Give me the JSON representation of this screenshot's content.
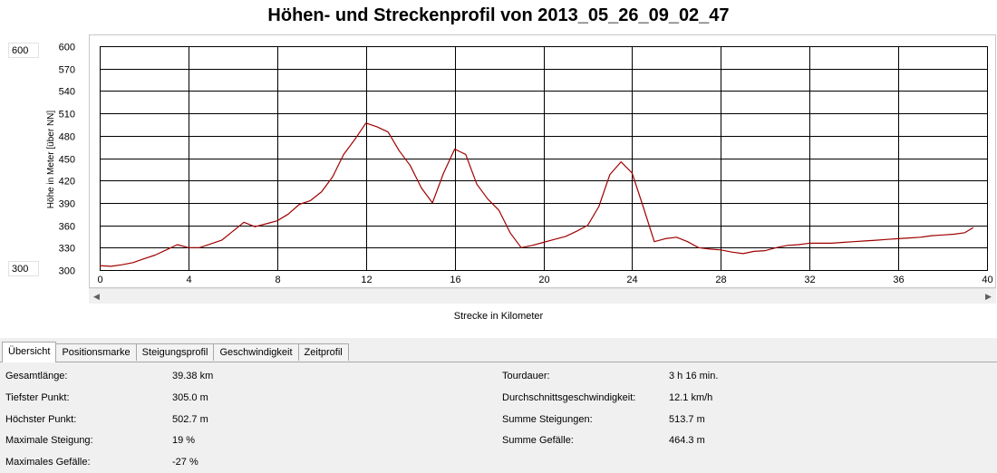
{
  "title": "Höhen- und Streckenprofil von 2013_05_26_09_02_47",
  "y_spin": {
    "max": "600",
    "min": "300"
  },
  "tabs": [
    {
      "label": "Übersicht",
      "active": true
    },
    {
      "label": "Positionsmarke",
      "active": false
    },
    {
      "label": "Steigungsprofil",
      "active": false
    },
    {
      "label": "Geschwindigkeit",
      "active": false
    },
    {
      "label": "Zeitprofil",
      "active": false
    }
  ],
  "stats_left": [
    {
      "label": "Gesamtlänge:",
      "value": "39.38 km"
    },
    {
      "label": "Tiefster Punkt:",
      "value": "305.0 m"
    },
    {
      "label": "Höchster Punkt:",
      "value": "502.7 m"
    },
    {
      "label": "Maximale Steigung:",
      "value": "19 %"
    },
    {
      "label": "Maximales Gefälle:",
      "value": "-27 %"
    }
  ],
  "stats_right": [
    {
      "label": "Tourdauer:",
      "value": "3 h 16 min."
    },
    {
      "label": "Durchschnittsgeschwindigkeit:",
      "value": "12.1 km/h"
    },
    {
      "label": "Summe Steigungen:",
      "value": "513.7 m"
    },
    {
      "label": "Summe Gefälle:",
      "value": "464.3 m"
    }
  ],
  "colors": {
    "line": "#a00000",
    "grid": "#000000",
    "background": "#ffffff",
    "panel": "#f0f0f0"
  },
  "chart_data": {
    "type": "line",
    "xlabel": "Strecke in Kilometer",
    "ylabel": "Höhe in Meter [über NN]",
    "xlim": [
      0,
      40
    ],
    "ylim": [
      300,
      600
    ],
    "x_ticks": [
      "0",
      "4",
      "8",
      "12",
      "16",
      "20",
      "24",
      "28",
      "32",
      "36",
      "40"
    ],
    "y_ticks": [
      "600",
      "570",
      "540",
      "510",
      "480",
      "450",
      "420",
      "390",
      "360",
      "330",
      "300"
    ],
    "grid": true,
    "series": [
      {
        "x": [
          0,
          0.5,
          1,
          1.5,
          2,
          2.5,
          3,
          3.5,
          4,
          4.5,
          5,
          5.5,
          6,
          6.5,
          7,
          7.5,
          8,
          8.5,
          9,
          9.5,
          10,
          10.5,
          11,
          11.5,
          12,
          12.5,
          13,
          13.5,
          14,
          14.5,
          15,
          15.5,
          16,
          16.5,
          17,
          17.5,
          18,
          18.5,
          19,
          19.5,
          20,
          20.5,
          21,
          21.5,
          22,
          22.5,
          23,
          23.5,
          24,
          24.5,
          25,
          25.5,
          26,
          26.5,
          27,
          27.5,
          28,
          28.5,
          29,
          29.5,
          30,
          30.5,
          31,
          31.5,
          32,
          32.5,
          33,
          33.5,
          34,
          34.5,
          35,
          35.5,
          36,
          36.5,
          37,
          37.5,
          38,
          38.5,
          39,
          39.38
        ],
        "y": [
          306,
          305,
          307,
          310,
          315,
          320,
          327,
          334,
          330,
          330,
          335,
          340,
          352,
          364,
          358,
          362,
          366,
          375,
          388,
          393,
          405,
          425,
          455,
          475,
          497,
          492,
          485,
          460,
          440,
          410,
          390,
          430,
          462,
          455,
          415,
          395,
          380,
          350,
          330,
          333,
          337,
          341,
          345,
          352,
          360,
          385,
          428,
          445,
          430,
          385,
          338,
          342,
          344,
          338,
          330,
          328,
          327,
          324,
          322,
          325,
          326,
          330,
          333,
          334,
          336,
          336,
          336,
          337,
          338,
          339,
          340,
          341,
          342,
          343,
          344,
          346,
          347,
          348,
          350,
          357
        ]
      }
    ]
  }
}
